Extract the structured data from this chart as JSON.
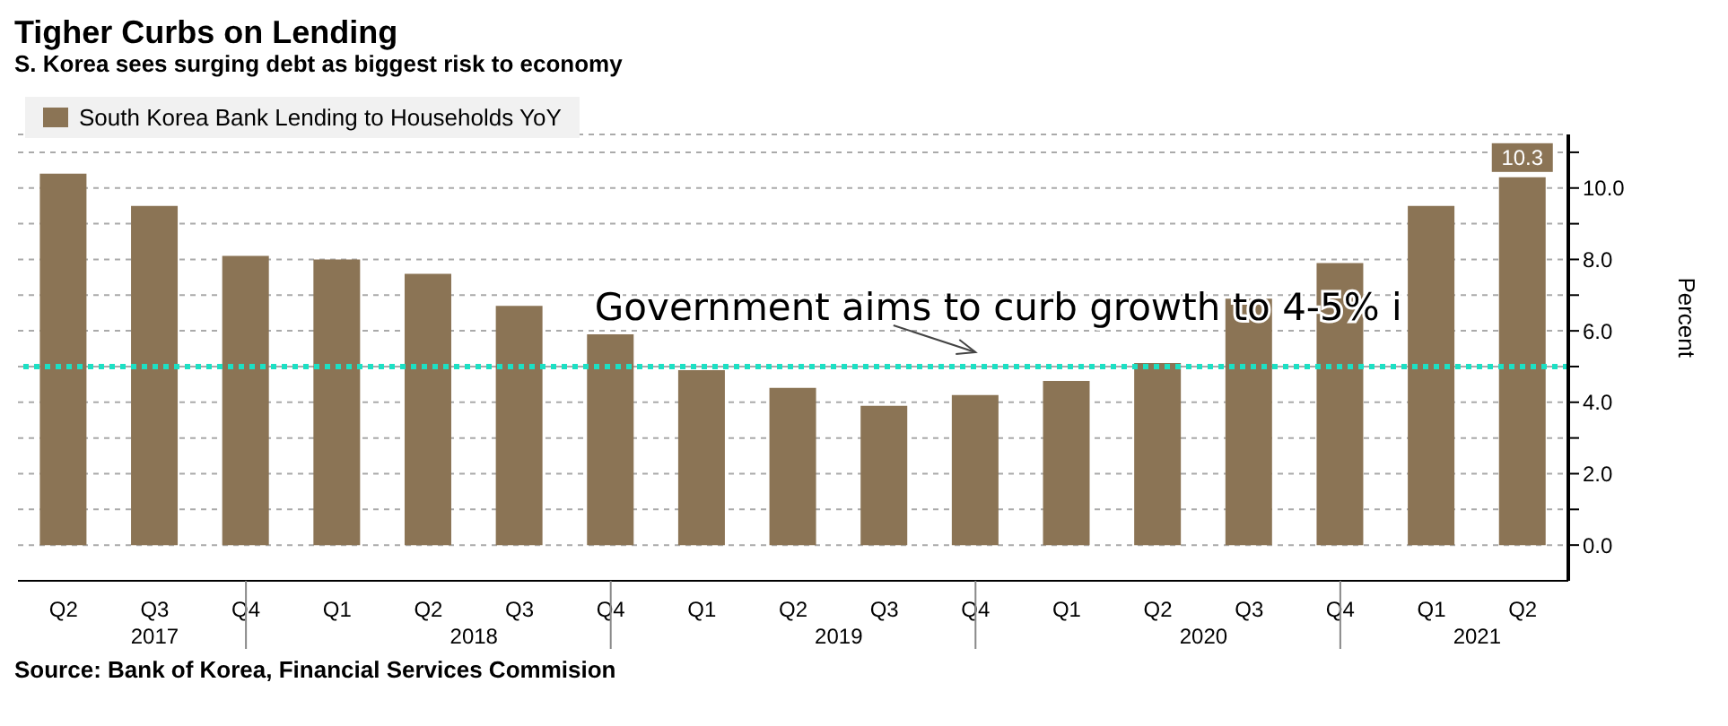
{
  "chart_data": {
    "type": "bar",
    "title": "Tigher Curbs on Lending",
    "subtitle": "S. Korea sees surging debt as biggest risk to economy",
    "categories": [
      "Q2",
      "Q3",
      "Q4",
      "Q1",
      "Q2",
      "Q3",
      "Q4",
      "Q1",
      "Q2",
      "Q3",
      "Q4",
      "Q1",
      "Q2",
      "Q3",
      "Q4",
      "Q1",
      "Q2"
    ],
    "series": [
      {
        "name": "South Korea Bank Lending to Households YoY",
        "color": "#8b7455",
        "values": [
          10.4,
          9.5,
          8.1,
          8.0,
          7.6,
          6.7,
          5.9,
          4.9,
          4.4,
          3.9,
          4.2,
          4.6,
          5.1,
          6.9,
          7.9,
          9.5,
          10.3
        ],
        "value_labels": [
          null,
          null,
          null,
          null,
          null,
          null,
          null,
          null,
          null,
          null,
          null,
          null,
          null,
          null,
          null,
          null,
          "10.3"
        ]
      }
    ],
    "ylabel": "Percent",
    "ylim": [
      -1,
      11.5
    ],
    "yticks": [
      {
        "value": 0,
        "label": "0.0"
      },
      {
        "value": 1,
        "label": null
      },
      {
        "value": 2,
        "label": "2.0"
      },
      {
        "value": 3,
        "label": null
      },
      {
        "value": 4,
        "label": "4.0"
      },
      {
        "value": 5,
        "label": null
      },
      {
        "value": 6,
        "label": "6.0"
      },
      {
        "value": 7,
        "label": null
      },
      {
        "value": 8,
        "label": "8.0"
      },
      {
        "value": 9,
        "label": null
      },
      {
        "value": 10,
        "label": "10.0"
      },
      {
        "value": 11,
        "label": null
      }
    ],
    "ref_lines": [
      {
        "axis": "y",
        "value": 5,
        "label": "Government aims to curb growth to 4-5% i",
        "color": "#1de0c4",
        "line_style": "dotted"
      }
    ],
    "grid": "y",
    "legend": "top left",
    "annotations": [
      "2017",
      "2018",
      "2019",
      "2020",
      "2021",
      "Source: Bank of Korea, Financial Services Commision"
    ]
  }
}
